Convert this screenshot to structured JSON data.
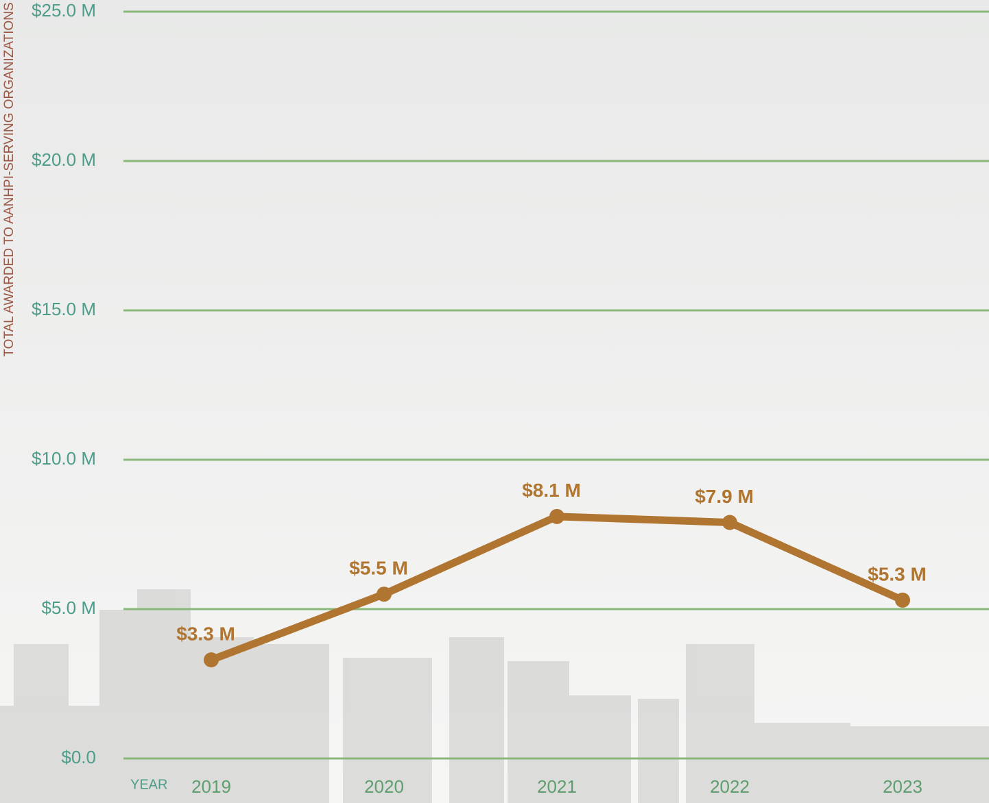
{
  "chart_data": {
    "type": "line",
    "y_axis_label": "TOTAL AWARDED TO AANHPI-SERVING ORGANIZATIONS",
    "x_axis_label": "YEAR",
    "categories": [
      "2019",
      "2020",
      "2021",
      "2022",
      "2023"
    ],
    "series": [
      {
        "color": "#b07530",
        "values": [
          3.3,
          5.5,
          8.1,
          7.9,
          5.3
        ],
        "value_labels": [
          "$3.3 M",
          "$5.5 M",
          "$8.1 M",
          "$7.9 M",
          "$5.3 M"
        ]
      }
    ],
    "ylim": [
      0,
      25
    ],
    "yticks": [
      {
        "value": 0,
        "label": "$0.0"
      },
      {
        "value": 5,
        "label": "$5.0 M"
      },
      {
        "value": 10,
        "label": "$10.0 M"
      },
      {
        "value": 15,
        "label": "$15.0 M"
      },
      {
        "value": 20,
        "label": "$20.0 M"
      },
      {
        "value": 25,
        "label": "$25.0 M"
      }
    ],
    "grid": true,
    "grid_color": "#8ab87a"
  }
}
